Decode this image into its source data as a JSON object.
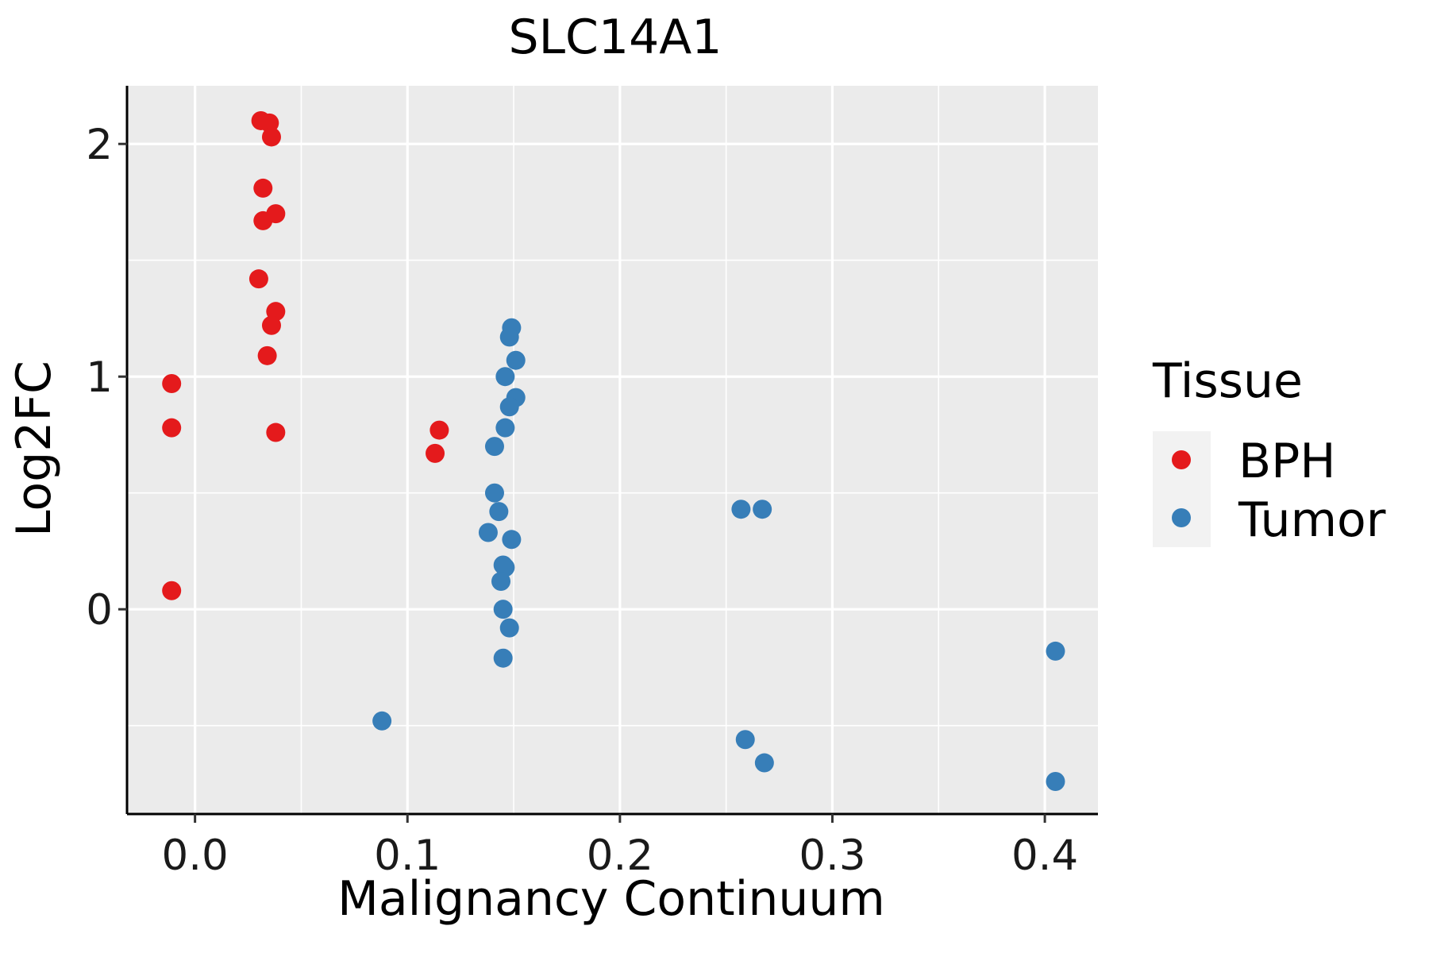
{
  "chart_data": {
    "type": "scatter",
    "title": "SLC14A1",
    "xlabel": "Malignancy Continuum",
    "ylabel": "Log2FC",
    "xlim": [
      -0.032,
      0.425
    ],
    "ylim": [
      -0.88,
      2.25
    ],
    "x_ticks": [
      0.0,
      0.1,
      0.2,
      0.3,
      0.4
    ],
    "x_tick_labels": [
      "0.0",
      "0.1",
      "0.2",
      "0.3",
      "0.4"
    ],
    "y_ticks": [
      0,
      1,
      2
    ],
    "y_tick_labels": [
      "0",
      "1",
      "2"
    ],
    "x_minor_grid": [
      0.05,
      0.15,
      0.25,
      0.35
    ],
    "y_minor_grid": [
      -0.5,
      0.5,
      1.5
    ],
    "grid": true,
    "panel_background": "#EBEBEB",
    "legend": {
      "title": "Tissue",
      "position": "right",
      "entries": [
        "BPH",
        "Tumor"
      ]
    },
    "series": [
      {
        "name": "BPH",
        "color": "#E41A1C",
        "points": [
          [
            0.031,
            2.1
          ],
          [
            0.035,
            2.09
          ],
          [
            0.036,
            2.03
          ],
          [
            0.032,
            1.81
          ],
          [
            0.038,
            1.7
          ],
          [
            0.032,
            1.67
          ],
          [
            0.03,
            1.42
          ],
          [
            0.038,
            1.28
          ],
          [
            0.036,
            1.22
          ],
          [
            0.034,
            1.09
          ],
          [
            0.038,
            0.76
          ],
          [
            -0.011,
            0.97
          ],
          [
            -0.011,
            0.78
          ],
          [
            -0.011,
            0.08
          ],
          [
            0.115,
            0.77
          ],
          [
            0.113,
            0.67
          ]
        ]
      },
      {
        "name": "Tumor",
        "color": "#377EB8",
        "points": [
          [
            0.149,
            1.21
          ],
          [
            0.148,
            1.17
          ],
          [
            0.151,
            1.07
          ],
          [
            0.146,
            1.0
          ],
          [
            0.151,
            0.91
          ],
          [
            0.148,
            0.87
          ],
          [
            0.146,
            0.78
          ],
          [
            0.141,
            0.7
          ],
          [
            0.141,
            0.5
          ],
          [
            0.143,
            0.42
          ],
          [
            0.138,
            0.33
          ],
          [
            0.149,
            0.3
          ],
          [
            0.145,
            0.19
          ],
          [
            0.146,
            0.18
          ],
          [
            0.144,
            0.12
          ],
          [
            0.145,
            0.0
          ],
          [
            0.148,
            -0.08
          ],
          [
            0.145,
            -0.21
          ],
          [
            0.088,
            -0.48
          ],
          [
            0.257,
            0.43
          ],
          [
            0.267,
            0.43
          ],
          [
            0.259,
            -0.56
          ],
          [
            0.268,
            -0.66
          ],
          [
            0.405,
            -0.18
          ],
          [
            0.405,
            -0.74
          ]
        ]
      }
    ]
  }
}
